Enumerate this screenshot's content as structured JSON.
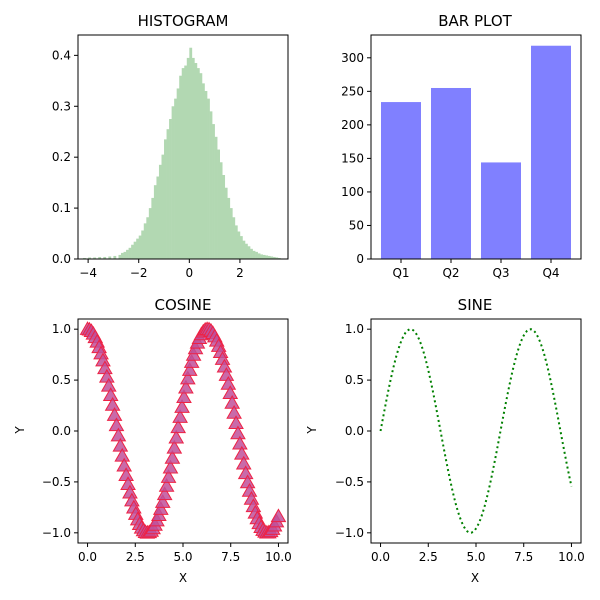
{
  "chart_data": [
    {
      "type": "bar",
      "subtype": "histogram",
      "title": "HISTOGRAM",
      "xlabel": "",
      "ylabel": "",
      "xlim": [
        -4.4,
        3.9
      ],
      "ylim": [
        0,
        0.44
      ],
      "xticks": [
        -4,
        -2,
        0,
        2
      ],
      "yticks": [
        0.0,
        0.1,
        0.2,
        0.3,
        0.4
      ],
      "color": "#b2d8b2",
      "bins": [
        [
          -4.2,
          0.002
        ],
        [
          -4.0,
          0.003
        ],
        [
          -3.8,
          0.003
        ],
        [
          -3.6,
          0.004
        ],
        [
          -3.4,
          0.004
        ],
        [
          -3.2,
          0.005
        ],
        [
          -3.0,
          0.006
        ],
        [
          -2.8,
          0.008
        ],
        [
          -2.7,
          0.012
        ],
        [
          -2.6,
          0.014
        ],
        [
          -2.5,
          0.018
        ],
        [
          -2.4,
          0.022
        ],
        [
          -2.3,
          0.028
        ],
        [
          -2.2,
          0.034
        ],
        [
          -2.1,
          0.04
        ],
        [
          -2.0,
          0.046
        ],
        [
          -1.9,
          0.056
        ],
        [
          -1.8,
          0.07
        ],
        [
          -1.7,
          0.082
        ],
        [
          -1.6,
          0.1
        ],
        [
          -1.5,
          0.12
        ],
        [
          -1.4,
          0.145
        ],
        [
          -1.3,
          0.162
        ],
        [
          -1.2,
          0.185
        ],
        [
          -1.1,
          0.205
        ],
        [
          -1.0,
          0.235
        ],
        [
          -0.9,
          0.255
        ],
        [
          -0.8,
          0.275
        ],
        [
          -0.7,
          0.3
        ],
        [
          -0.6,
          0.315
        ],
        [
          -0.5,
          0.335
        ],
        [
          -0.4,
          0.36
        ],
        [
          -0.3,
          0.375
        ],
        [
          -0.2,
          0.38
        ],
        [
          -0.1,
          0.395
        ],
        [
          0.0,
          0.415
        ],
        [
          0.1,
          0.395
        ],
        [
          0.2,
          0.385
        ],
        [
          0.3,
          0.375
        ],
        [
          0.4,
          0.365
        ],
        [
          0.5,
          0.345
        ],
        [
          0.6,
          0.33
        ],
        [
          0.7,
          0.315
        ],
        [
          0.8,
          0.29
        ],
        [
          0.9,
          0.265
        ],
        [
          1.0,
          0.24
        ],
        [
          1.1,
          0.215
        ],
        [
          1.2,
          0.19
        ],
        [
          1.3,
          0.165
        ],
        [
          1.4,
          0.14
        ],
        [
          1.5,
          0.12
        ],
        [
          1.6,
          0.1
        ],
        [
          1.7,
          0.082
        ],
        [
          1.8,
          0.066
        ],
        [
          1.9,
          0.054
        ],
        [
          2.0,
          0.045
        ],
        [
          2.1,
          0.036
        ],
        [
          2.2,
          0.03
        ],
        [
          2.3,
          0.025
        ],
        [
          2.4,
          0.02
        ],
        [
          2.5,
          0.016
        ],
        [
          2.6,
          0.014
        ],
        [
          2.7,
          0.011
        ],
        [
          2.8,
          0.009
        ],
        [
          2.9,
          0.008
        ],
        [
          3.0,
          0.007
        ],
        [
          3.1,
          0.006
        ],
        [
          3.2,
          0.005
        ],
        [
          3.3,
          0.004
        ],
        [
          3.4,
          0.003
        ],
        [
          3.5,
          0.002
        ]
      ],
      "bin_width": 0.1
    },
    {
      "type": "bar",
      "title": "BAR PLOT",
      "xlabel": "",
      "ylabel": "",
      "categories": [
        "Q1",
        "Q2",
        "Q3",
        "Q4"
      ],
      "values": [
        234,
        255,
        144,
        318
      ],
      "ylim": [
        0,
        334
      ],
      "yticks": [
        0,
        50,
        100,
        150,
        200,
        250,
        300
      ],
      "color": "#8080ff"
    },
    {
      "type": "scatter",
      "title": "COSINE",
      "xlabel": "X",
      "ylabel": "Y",
      "function": "cos",
      "x_range": [
        0,
        10
      ],
      "n_points": 100,
      "xlim": [
        -0.5,
        10.5
      ],
      "ylim": [
        -1.1,
        1.1
      ],
      "xticks": [
        0.0,
        2.5,
        5.0,
        7.5,
        10.0
      ],
      "yticks": [
        -1.0,
        -0.5,
        0.0,
        0.5,
        1.0
      ],
      "marker": "triangle-up",
      "fill_color": "#c0509a",
      "edge_color": "#ee2244"
    },
    {
      "type": "line",
      "title": "SINE",
      "xlabel": "X",
      "ylabel": "Y",
      "function": "sin",
      "x_range": [
        0,
        10
      ],
      "n_points": 100,
      "xlim": [
        -0.5,
        10.5
      ],
      "ylim": [
        -1.1,
        1.1
      ],
      "xticks": [
        0.0,
        2.5,
        5.0,
        7.5,
        10.0
      ],
      "yticks": [
        -1.0,
        -0.5,
        0.0,
        0.5,
        1.0
      ],
      "linestyle": "dotted",
      "color": "#008000"
    }
  ]
}
